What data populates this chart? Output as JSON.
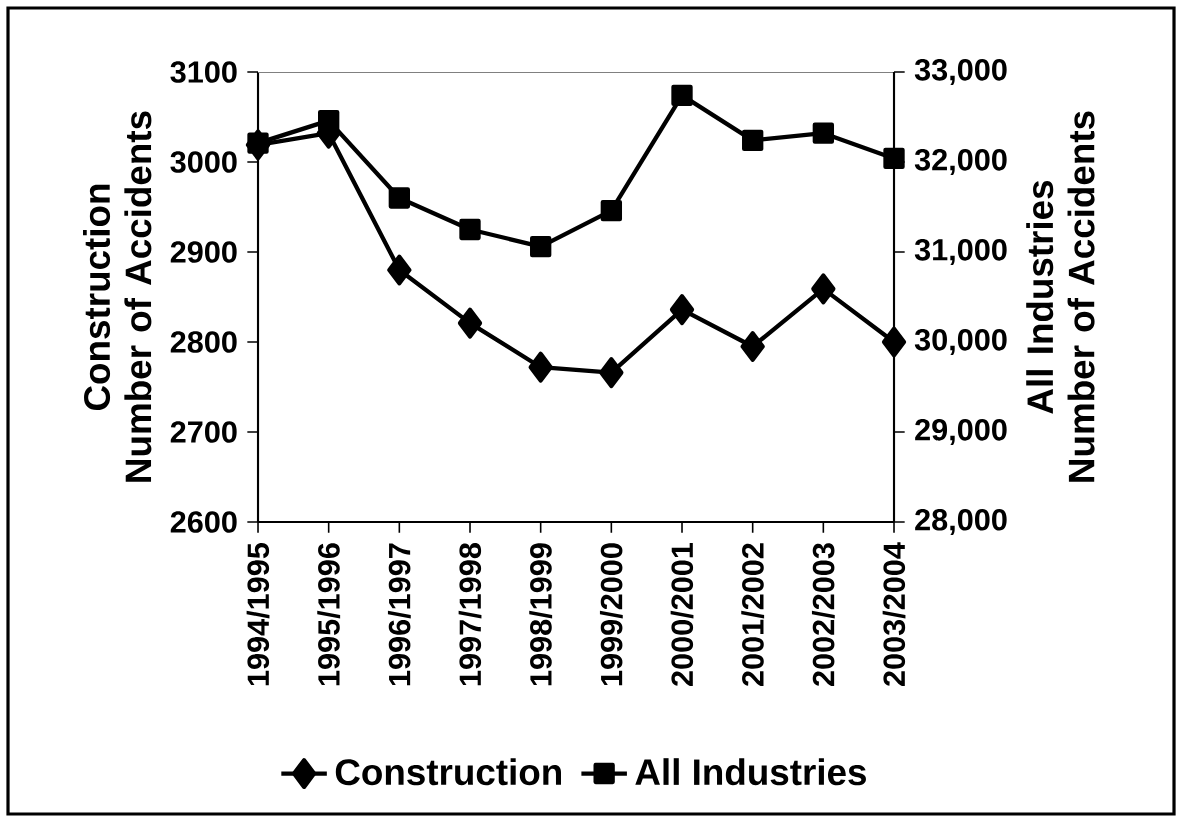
{
  "chart_data": {
    "type": "line",
    "categories": [
      "1994/1995",
      "1995/1996",
      "1996/1997",
      "1997/1998",
      "1998/1999",
      "1999/2000",
      "2000/2001",
      "2001/2002",
      "2002/2003",
      "2003/2004"
    ],
    "series": [
      {
        "name": "Construction",
        "color": "#000000",
        "marker": "diamond",
        "values": [
          3019,
          3032,
          2880,
          2821,
          2772,
          2766,
          2836,
          2795,
          2859,
          2800
        ]
      },
      {
        "name": "All Industries",
        "color": "#000000",
        "marker": "square",
        "axis": "y2",
        "values": [
          32210,
          32460,
          31600,
          31250,
          31060,
          31460,
          32740,
          32240,
          32320,
          32040
        ]
      }
    ],
    "ylabel": "Construction Number of Accidents",
    "y2label": "All Industries Number of Accidents",
    "ylim": [
      2600,
      3100
    ],
    "yticks": [
      2600,
      2700,
      2800,
      2900,
      3000,
      3100
    ],
    "y2lim": [
      28000,
      33000
    ],
    "y2ticks": [
      {
        "value": 28000,
        "label": "28,000"
      },
      {
        "value": 29000,
        "label": "29,000"
      },
      {
        "value": 30000,
        "label": "30,000"
      },
      {
        "value": 31000,
        "label": "31,000"
      },
      {
        "value": 32000,
        "label": "32,000"
      },
      {
        "value": 33000,
        "label": "33,000"
      }
    ],
    "grid": false,
    "legend": "bottom",
    "line_style": "solid"
  }
}
